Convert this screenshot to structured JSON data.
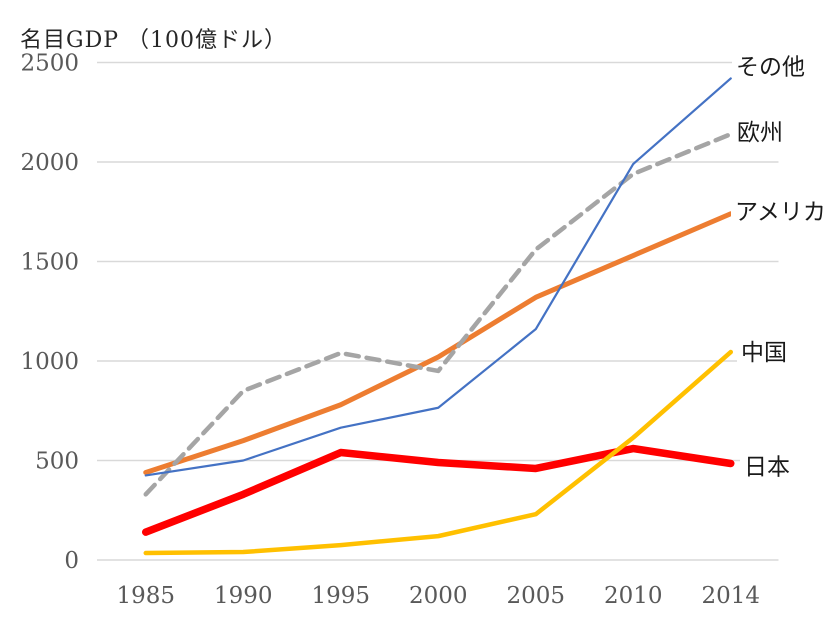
{
  "chart_data": {
    "type": "line",
    "title": "名目GDP （100億ドル）",
    "xlabel": "",
    "ylabel": "名目GDP（100億ドル）",
    "categories": [
      "1985",
      "1990",
      "1995",
      "2000",
      "2005",
      "2010",
      "2014"
    ],
    "yticks": [
      0,
      500,
      1000,
      1500,
      2000,
      2500
    ],
    "ylim": [
      0,
      2500
    ],
    "grid": "horizontal-only",
    "legend_position": "labels-at-line-ends-right",
    "axis_tick_color": "#595959",
    "gridline_color": "#d9d9d9",
    "label_text_color": "#1a1a1a",
    "series": [
      {
        "name": "アメリカ",
        "color": "#ED7D31",
        "style": "solid",
        "thickness": "thick",
        "values": [
          440,
          600,
          780,
          1020,
          1320,
          1530,
          1740
        ]
      },
      {
        "name": "欧州",
        "color": "#A5A5A5",
        "style": "dashed",
        "thickness": "medium",
        "values": [
          330,
          850,
          1040,
          950,
          1560,
          1940,
          2140
        ]
      },
      {
        "name": "その他",
        "color": "#4472C4",
        "style": "solid",
        "thickness": "thin",
        "values": [
          425,
          500,
          665,
          765,
          1160,
          1990,
          2420
        ]
      },
      {
        "name": "日本",
        "color": "#FF0000",
        "style": "solid",
        "thickness": "heavy",
        "values": [
          140,
          330,
          540,
          490,
          460,
          560,
          485
        ]
      },
      {
        "name": "中国",
        "color": "#FFC000",
        "style": "solid",
        "thickness": "medium",
        "values": [
          35,
          40,
          75,
          120,
          230,
          615,
          1045
        ]
      }
    ]
  }
}
